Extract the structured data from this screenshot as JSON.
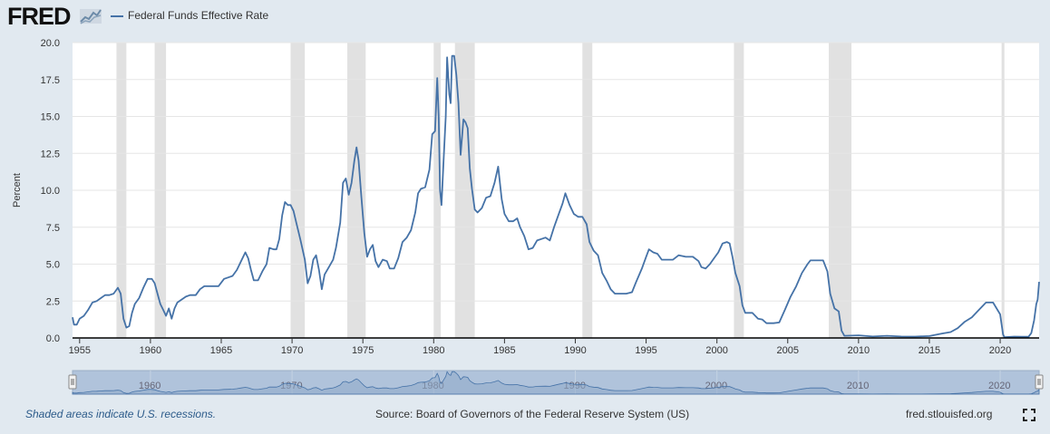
{
  "header": {
    "logo": "FRED",
    "logo_icon": "line-chart-icon"
  },
  "footer": {
    "note": "Shaded areas indicate U.S. recessions.",
    "source": "Source: Board of Governors of the Federal Reserve System (US)",
    "site": "fred.stlouisfed.org",
    "fullscreen_icon": "fullscreen-icon"
  },
  "colors": {
    "background": "#e1e9f0",
    "plot_bg": "#ffffff",
    "series": "#4572a7",
    "recession": "#e1e1e1",
    "navigator_fill": "#b0c3db",
    "navigator_line": "#4572a7"
  },
  "chart_data": {
    "type": "line",
    "title": "",
    "xlabel": "",
    "ylabel": "Percent",
    "xlim": [
      1954.5,
      2022.75
    ],
    "ylim": [
      0,
      20
    ],
    "y_ticks": [
      "0.0",
      "2.5",
      "5.0",
      "7.5",
      "10.0",
      "12.5",
      "15.0",
      "17.5",
      "20.0"
    ],
    "x_ticks": [
      "1955",
      "1960",
      "1965",
      "1970",
      "1975",
      "1980",
      "1985",
      "1990",
      "1995",
      "2000",
      "2005",
      "2010",
      "2015",
      "2020"
    ],
    "navigator_ticks": [
      "1960",
      "1970",
      "1980",
      "1990",
      "2000",
      "2010",
      "2020"
    ],
    "grid": "horizontal",
    "legend": "top-left",
    "series": [
      {
        "name": "Federal Funds Effective Rate",
        "points": [
          [
            1954.5,
            1.4
          ],
          [
            1954.6,
            0.9
          ],
          [
            1954.8,
            0.9
          ],
          [
            1955.0,
            1.3
          ],
          [
            1955.3,
            1.5
          ],
          [
            1955.6,
            1.9
          ],
          [
            1955.9,
            2.4
          ],
          [
            1956.2,
            2.5
          ],
          [
            1956.5,
            2.7
          ],
          [
            1956.8,
            2.9
          ],
          [
            1957.1,
            2.9
          ],
          [
            1957.4,
            3.0
          ],
          [
            1957.7,
            3.4
          ],
          [
            1957.9,
            3.0
          ],
          [
            1958.1,
            1.3
          ],
          [
            1958.3,
            0.7
          ],
          [
            1958.5,
            0.8
          ],
          [
            1958.7,
            1.7
          ],
          [
            1958.9,
            2.3
          ],
          [
            1959.2,
            2.7
          ],
          [
            1959.5,
            3.4
          ],
          [
            1959.8,
            4.0
          ],
          [
            1960.1,
            4.0
          ],
          [
            1960.3,
            3.7
          ],
          [
            1960.5,
            3.0
          ],
          [
            1960.7,
            2.3
          ],
          [
            1960.9,
            1.9
          ],
          [
            1961.1,
            1.5
          ],
          [
            1961.3,
            2.0
          ],
          [
            1961.5,
            1.3
          ],
          [
            1961.7,
            2.0
          ],
          [
            1961.9,
            2.4
          ],
          [
            1962.2,
            2.6
          ],
          [
            1962.5,
            2.8
          ],
          [
            1962.8,
            2.9
          ],
          [
            1963.2,
            2.9
          ],
          [
            1963.5,
            3.3
          ],
          [
            1963.8,
            3.5
          ],
          [
            1964.2,
            3.5
          ],
          [
            1964.5,
            3.5
          ],
          [
            1964.8,
            3.5
          ],
          [
            1965.2,
            4.0
          ],
          [
            1965.5,
            4.1
          ],
          [
            1965.8,
            4.2
          ],
          [
            1966.1,
            4.6
          ],
          [
            1966.4,
            5.2
          ],
          [
            1966.7,
            5.8
          ],
          [
            1966.9,
            5.4
          ],
          [
            1967.1,
            4.6
          ],
          [
            1967.3,
            3.9
          ],
          [
            1967.6,
            3.9
          ],
          [
            1967.9,
            4.5
          ],
          [
            1968.2,
            5.0
          ],
          [
            1968.4,
            6.1
          ],
          [
            1968.7,
            6.0
          ],
          [
            1968.9,
            6.0
          ],
          [
            1969.1,
            6.7
          ],
          [
            1969.3,
            8.3
          ],
          [
            1969.5,
            9.2
          ],
          [
            1969.7,
            9.0
          ],
          [
            1969.9,
            9.0
          ],
          [
            1970.1,
            8.6
          ],
          [
            1970.3,
            7.8
          ],
          [
            1970.6,
            6.6
          ],
          [
            1970.9,
            5.3
          ],
          [
            1971.1,
            3.7
          ],
          [
            1971.3,
            4.2
          ],
          [
            1971.5,
            5.3
          ],
          [
            1971.7,
            5.6
          ],
          [
            1971.9,
            4.6
          ],
          [
            1972.1,
            3.3
          ],
          [
            1972.3,
            4.3
          ],
          [
            1972.6,
            4.8
          ],
          [
            1972.9,
            5.3
          ],
          [
            1973.1,
            6.1
          ],
          [
            1973.4,
            7.8
          ],
          [
            1973.6,
            10.5
          ],
          [
            1973.8,
            10.8
          ],
          [
            1974.0,
            9.7
          ],
          [
            1974.2,
            10.5
          ],
          [
            1974.4,
            12.0
          ],
          [
            1974.55,
            12.9
          ],
          [
            1974.7,
            12.0
          ],
          [
            1974.9,
            9.5
          ],
          [
            1975.1,
            7.1
          ],
          [
            1975.3,
            5.5
          ],
          [
            1975.5,
            6.0
          ],
          [
            1975.7,
            6.3
          ],
          [
            1975.9,
            5.2
          ],
          [
            1976.1,
            4.8
          ],
          [
            1976.4,
            5.3
          ],
          [
            1976.7,
            5.2
          ],
          [
            1976.9,
            4.7
          ],
          [
            1977.2,
            4.7
          ],
          [
            1977.5,
            5.4
          ],
          [
            1977.8,
            6.5
          ],
          [
            1978.1,
            6.8
          ],
          [
            1978.4,
            7.3
          ],
          [
            1978.7,
            8.5
          ],
          [
            1978.9,
            9.8
          ],
          [
            1979.1,
            10.1
          ],
          [
            1979.4,
            10.2
          ],
          [
            1979.7,
            11.4
          ],
          [
            1979.9,
            13.8
          ],
          [
            1980.1,
            14.0
          ],
          [
            1980.25,
            17.6
          ],
          [
            1980.35,
            15.0
          ],
          [
            1980.45,
            10.0
          ],
          [
            1980.55,
            9.0
          ],
          [
            1980.7,
            12.0
          ],
          [
            1980.85,
            15.0
          ],
          [
            1980.95,
            19.0
          ],
          [
            1981.1,
            16.5
          ],
          [
            1981.2,
            15.9
          ],
          [
            1981.3,
            19.1
          ],
          [
            1981.45,
            19.1
          ],
          [
            1981.6,
            17.8
          ],
          [
            1981.75,
            15.9
          ],
          [
            1981.9,
            12.4
          ],
          [
            1982.1,
            14.8
          ],
          [
            1982.25,
            14.6
          ],
          [
            1982.4,
            14.2
          ],
          [
            1982.55,
            11.5
          ],
          [
            1982.7,
            10.1
          ],
          [
            1982.9,
            8.7
          ],
          [
            1983.1,
            8.5
          ],
          [
            1983.4,
            8.8
          ],
          [
            1983.7,
            9.5
          ],
          [
            1984.0,
            9.6
          ],
          [
            1984.3,
            10.5
          ],
          [
            1984.55,
            11.6
          ],
          [
            1984.8,
            9.4
          ],
          [
            1985.0,
            8.4
          ],
          [
            1985.3,
            7.9
          ],
          [
            1985.6,
            7.9
          ],
          [
            1985.9,
            8.1
          ],
          [
            1986.1,
            7.5
          ],
          [
            1986.4,
            6.9
          ],
          [
            1986.7,
            6.0
          ],
          [
            1987.0,
            6.1
          ],
          [
            1987.3,
            6.6
          ],
          [
            1987.6,
            6.7
          ],
          [
            1987.9,
            6.8
          ],
          [
            1988.2,
            6.6
          ],
          [
            1988.5,
            7.5
          ],
          [
            1988.8,
            8.3
          ],
          [
            1989.1,
            9.1
          ],
          [
            1989.3,
            9.8
          ],
          [
            1989.6,
            9.0
          ],
          [
            1989.9,
            8.4
          ],
          [
            1990.2,
            8.2
          ],
          [
            1990.5,
            8.2
          ],
          [
            1990.8,
            7.7
          ],
          [
            1991.0,
            6.5
          ],
          [
            1991.3,
            5.9
          ],
          [
            1991.6,
            5.6
          ],
          [
            1991.9,
            4.4
          ],
          [
            1992.2,
            3.9
          ],
          [
            1992.5,
            3.3
          ],
          [
            1992.8,
            3.0
          ],
          [
            1993.2,
            3.0
          ],
          [
            1993.6,
            3.0
          ],
          [
            1994.0,
            3.1
          ],
          [
            1994.3,
            3.8
          ],
          [
            1994.7,
            4.7
          ],
          [
            1995.0,
            5.5
          ],
          [
            1995.2,
            6.0
          ],
          [
            1995.5,
            5.8
          ],
          [
            1995.8,
            5.7
          ],
          [
            1996.1,
            5.3
          ],
          [
            1996.5,
            5.3
          ],
          [
            1996.9,
            5.3
          ],
          [
            1997.3,
            5.6
          ],
          [
            1997.8,
            5.5
          ],
          [
            1998.3,
            5.5
          ],
          [
            1998.7,
            5.2
          ],
          [
            1998.9,
            4.8
          ],
          [
            1999.2,
            4.7
          ],
          [
            1999.5,
            5.0
          ],
          [
            1999.8,
            5.4
          ],
          [
            2000.1,
            5.8
          ],
          [
            2000.4,
            6.4
          ],
          [
            2000.7,
            6.5
          ],
          [
            2000.9,
            6.4
          ],
          [
            2001.1,
            5.5
          ],
          [
            2001.3,
            4.4
          ],
          [
            2001.6,
            3.5
          ],
          [
            2001.8,
            2.2
          ],
          [
            2002.0,
            1.7
          ],
          [
            2002.5,
            1.7
          ],
          [
            2002.9,
            1.3
          ],
          [
            2003.2,
            1.25
          ],
          [
            2003.5,
            1.0
          ],
          [
            2004.0,
            1.0
          ],
          [
            2004.4,
            1.05
          ],
          [
            2004.8,
            1.9
          ],
          [
            2005.2,
            2.8
          ],
          [
            2005.6,
            3.5
          ],
          [
            2006.0,
            4.4
          ],
          [
            2006.4,
            5.0
          ],
          [
            2006.6,
            5.25
          ],
          [
            2007.0,
            5.25
          ],
          [
            2007.5,
            5.25
          ],
          [
            2007.8,
            4.5
          ],
          [
            2008.0,
            3.0
          ],
          [
            2008.3,
            2.0
          ],
          [
            2008.6,
            1.8
          ],
          [
            2008.8,
            0.5
          ],
          [
            2009.0,
            0.15
          ],
          [
            2010.0,
            0.18
          ],
          [
            2011.0,
            0.1
          ],
          [
            2012.0,
            0.15
          ],
          [
            2013.0,
            0.1
          ],
          [
            2014.0,
            0.09
          ],
          [
            2015.0,
            0.13
          ],
          [
            2015.9,
            0.3
          ],
          [
            2016.5,
            0.4
          ],
          [
            2017.0,
            0.66
          ],
          [
            2017.5,
            1.1
          ],
          [
            2018.0,
            1.4
          ],
          [
            2018.5,
            1.9
          ],
          [
            2019.0,
            2.4
          ],
          [
            2019.5,
            2.4
          ],
          [
            2019.75,
            2.0
          ],
          [
            2020.0,
            1.6
          ],
          [
            2020.2,
            0.25
          ],
          [
            2020.3,
            0.05
          ],
          [
            2021.0,
            0.09
          ],
          [
            2021.5,
            0.08
          ],
          [
            2022.0,
            0.08
          ],
          [
            2022.2,
            0.33
          ],
          [
            2022.4,
            1.2
          ],
          [
            2022.55,
            2.3
          ],
          [
            2022.65,
            2.6
          ],
          [
            2022.75,
            3.8
          ]
        ]
      }
    ],
    "recessions": [
      [
        1957.6,
        1958.3
      ],
      [
        1960.3,
        1961.1
      ],
      [
        1969.9,
        1970.9
      ],
      [
        1973.9,
        1975.2
      ],
      [
        1980.0,
        1980.5
      ],
      [
        1981.5,
        1982.9
      ],
      [
        1990.5,
        1991.2
      ],
      [
        2001.2,
        2001.9
      ],
      [
        2007.9,
        2009.5
      ],
      [
        2020.1,
        2020.3
      ]
    ]
  }
}
